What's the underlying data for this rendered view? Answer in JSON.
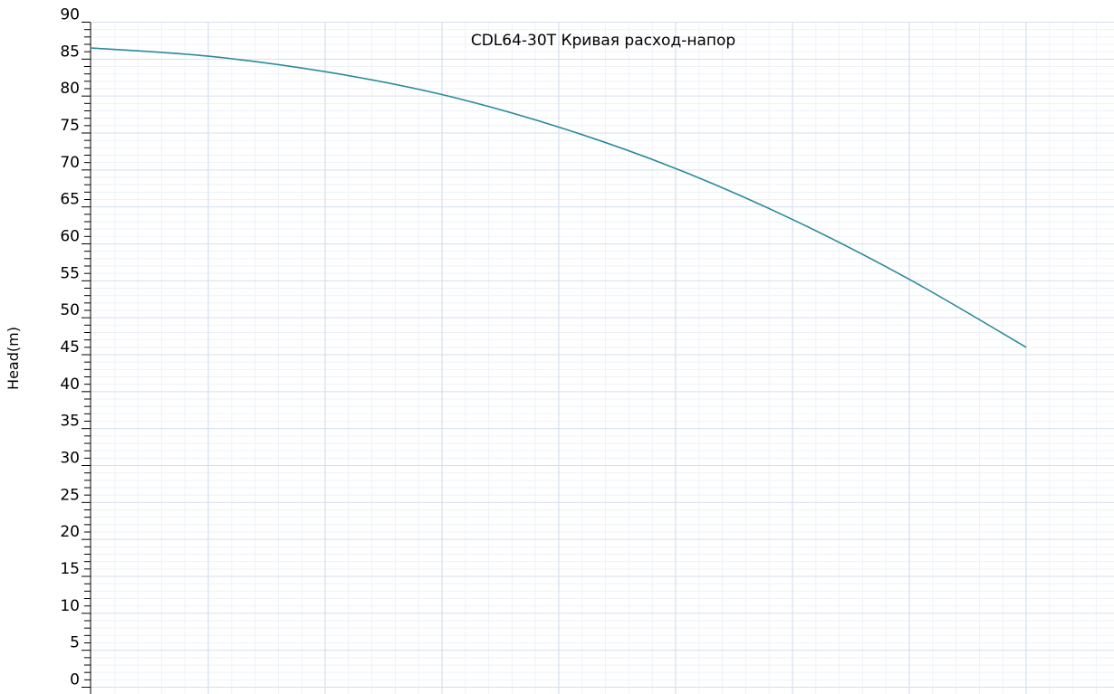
{
  "chart_data": {
    "type": "line",
    "title": "CDL64-30T Кривая расход-напор",
    "xlabel": "",
    "ylabel": "Head(m)",
    "ylim": [
      0,
      90
    ],
    "y_ticks": [
      0,
      5,
      10,
      15,
      20,
      25,
      30,
      35,
      40,
      45,
      50,
      55,
      60,
      65,
      70,
      75,
      80,
      85,
      90
    ],
    "x_tick_labels_visible": false,
    "grid": true,
    "legend": "none",
    "colors": {
      "line": "#2a8a9c",
      "grid_major": "#d6dfee",
      "grid_minor": "#eef2f8",
      "axis": "#000000"
    },
    "series": [
      {
        "values": [
          [
            0,
            86.5
          ],
          [
            1,
            85.4
          ],
          [
            2,
            83.3
          ],
          [
            3,
            80.2
          ],
          [
            4,
            75.8
          ],
          [
            5,
            70.2
          ],
          [
            6,
            63.3
          ],
          [
            7,
            55.2
          ],
          [
            8,
            46.0
          ]
        ]
      }
    ]
  }
}
